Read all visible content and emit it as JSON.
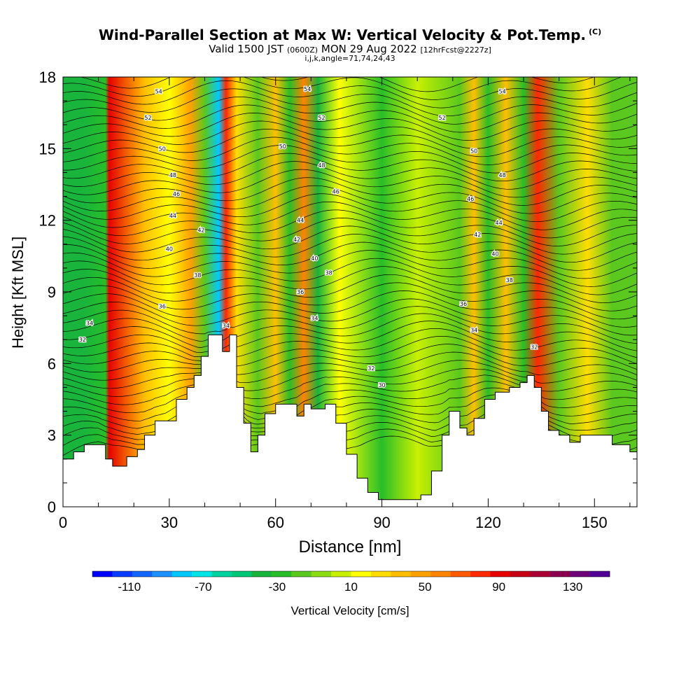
{
  "chart_data": {
    "type": "heatmap",
    "title": "Wind-Parallel Section at Max W: Vertical Velocity & Pot.Temp.",
    "title_mark": "(C)",
    "subtitle_main": "Valid 1500 JST",
    "subtitle_utc": "(0600Z)",
    "subtitle_date": "MON 29 Aug 2022",
    "subtitle_fcst": "[12hrFcst@2227z]",
    "params": "i,j,k,angle=71,74,24,43",
    "xlabel": "Distance [nm]",
    "ylabel": "Height [Kft MSL]",
    "xlim": [
      0,
      162
    ],
    "ylim": [
      0,
      18
    ],
    "x_ticks": [
      "0",
      "30",
      "60",
      "90",
      "120",
      "150"
    ],
    "y_ticks": [
      "0",
      "3",
      "6",
      "9",
      "12",
      "15",
      "18"
    ],
    "colorbar": {
      "label": "Vertical Velocity [cm/s]",
      "tick_labels": [
        "-110",
        "-70",
        "-30",
        "10",
        "50",
        "90",
        "130"
      ],
      "colors": [
        "#0000ff",
        "#0a3cff",
        "#1466ff",
        "#1e90ff",
        "#00c8ff",
        "#00e6e6",
        "#00d2a0",
        "#00c878",
        "#19b43c",
        "#28be28",
        "#5ac81e",
        "#8cdc14",
        "#c8f000",
        "#ffff00",
        "#ffdc00",
        "#ffbe00",
        "#ffa000",
        "#ff8200",
        "#ff5a00",
        "#ff2800",
        "#e60000",
        "#c80014",
        "#aa0032",
        "#8c0050",
        "#6e0078",
        "#500096"
      ]
    },
    "w_centers": [
      {
        "x": 12,
        "w": -25
      },
      {
        "x": 6,
        "w": -40
      },
      {
        "x": 13,
        "w": 95
      },
      {
        "x": 23,
        "w": 40
      },
      {
        "x": 30,
        "w": 20
      },
      {
        "x": 36,
        "w": 50
      },
      {
        "x": 40,
        "w": -20
      },
      {
        "x": 44,
        "w": -80
      },
      {
        "x": 46,
        "w": 80
      },
      {
        "x": 49,
        "w": 30
      },
      {
        "x": 55,
        "w": -20
      },
      {
        "x": 60,
        "w": 40
      },
      {
        "x": 64,
        "w": -30
      },
      {
        "x": 68,
        "w": 60
      },
      {
        "x": 72,
        "w": -40
      },
      {
        "x": 78,
        "w": 10
      },
      {
        "x": 90,
        "w": -30
      },
      {
        "x": 100,
        "w": 5
      },
      {
        "x": 112,
        "w": -15
      },
      {
        "x": 116,
        "w": 40
      },
      {
        "x": 120,
        "w": -25
      },
      {
        "x": 125,
        "w": 35
      },
      {
        "x": 130,
        "w": -30
      },
      {
        "x": 134,
        "w": 80
      },
      {
        "x": 140,
        "w": -20
      },
      {
        "x": 148,
        "w": 30
      },
      {
        "x": 155,
        "w": -15
      }
    ],
    "terrain": [
      {
        "x": 0,
        "h": 2.0
      },
      {
        "x": 3,
        "h": 2.3
      },
      {
        "x": 6,
        "h": 2.6
      },
      {
        "x": 10,
        "h": 2.6
      },
      {
        "x": 12,
        "h": 2.0
      },
      {
        "x": 14,
        "h": 1.7
      },
      {
        "x": 18,
        "h": 2.1
      },
      {
        "x": 21,
        "h": 2.4
      },
      {
        "x": 23,
        "h": 3.0
      },
      {
        "x": 26,
        "h": 3.6
      },
      {
        "x": 29,
        "h": 3.6
      },
      {
        "x": 32,
        "h": 4.5
      },
      {
        "x": 35,
        "h": 5.0
      },
      {
        "x": 37,
        "h": 5.5
      },
      {
        "x": 39,
        "h": 6.3
      },
      {
        "x": 41,
        "h": 7.2
      },
      {
        "x": 43,
        "h": 7.2
      },
      {
        "x": 45,
        "h": 6.5
      },
      {
        "x": 47,
        "h": 7.2
      },
      {
        "x": 49,
        "h": 5.0
      },
      {
        "x": 51,
        "h": 3.5
      },
      {
        "x": 53,
        "h": 2.3
      },
      {
        "x": 55,
        "h": 3.0
      },
      {
        "x": 57,
        "h": 3.9
      },
      {
        "x": 60,
        "h": 4.3
      },
      {
        "x": 63,
        "h": 4.3
      },
      {
        "x": 66,
        "h": 3.8
      },
      {
        "x": 68,
        "h": 4.3
      },
      {
        "x": 70,
        "h": 4.1
      },
      {
        "x": 74,
        "h": 4.3
      },
      {
        "x": 77,
        "h": 3.5
      },
      {
        "x": 80,
        "h": 2.2
      },
      {
        "x": 83,
        "h": 1.2
      },
      {
        "x": 86,
        "h": 0.6
      },
      {
        "x": 89,
        "h": 0.3
      },
      {
        "x": 94,
        "h": 0.3
      },
      {
        "x": 98,
        "h": 0.3
      },
      {
        "x": 101,
        "h": 0.5
      },
      {
        "x": 104,
        "h": 1.5
      },
      {
        "x": 107,
        "h": 3.0
      },
      {
        "x": 109,
        "h": 4.0
      },
      {
        "x": 112,
        "h": 3.3
      },
      {
        "x": 114,
        "h": 3.0
      },
      {
        "x": 116,
        "h": 3.7
      },
      {
        "x": 119,
        "h": 4.5
      },
      {
        "x": 122,
        "h": 4.8
      },
      {
        "x": 126,
        "h": 5.0
      },
      {
        "x": 129,
        "h": 5.2
      },
      {
        "x": 131,
        "h": 5.5
      },
      {
        "x": 133,
        "h": 5.0
      },
      {
        "x": 135,
        "h": 4.0
      },
      {
        "x": 137,
        "h": 3.2
      },
      {
        "x": 140,
        "h": 3.0
      },
      {
        "x": 143,
        "h": 2.7
      },
      {
        "x": 146,
        "h": 3.0
      },
      {
        "x": 149,
        "h": 3.0
      },
      {
        "x": 152,
        "h": 3.0
      },
      {
        "x": 155,
        "h": 2.6
      },
      {
        "x": 158,
        "h": 2.6
      },
      {
        "x": 160,
        "h": 2.3
      },
      {
        "x": 162,
        "h": 2.5
      }
    ],
    "isentrope_labels": [
      {
        "text": "54",
        "x": 27,
        "y": 17.4
      },
      {
        "text": "52",
        "x": 24,
        "y": 16.3
      },
      {
        "text": "50",
        "x": 28,
        "y": 15.0
      },
      {
        "text": "48",
        "x": 31,
        "y": 13.9
      },
      {
        "text": "46",
        "x": 32,
        "y": 13.1
      },
      {
        "text": "44",
        "x": 31,
        "y": 12.2
      },
      {
        "text": "42",
        "x": 39,
        "y": 11.6
      },
      {
        "text": "40",
        "x": 30,
        "y": 10.8
      },
      {
        "text": "38",
        "x": 38,
        "y": 9.7
      },
      {
        "text": "36",
        "x": 28,
        "y": 8.4
      },
      {
        "text": "34",
        "x": 7.5,
        "y": 7.7
      },
      {
        "text": "34",
        "x": 46,
        "y": 7.6
      },
      {
        "text": "32",
        "x": 5.5,
        "y": 7.0
      },
      {
        "text": "54",
        "x": 69,
        "y": 17.5
      },
      {
        "text": "52",
        "x": 73,
        "y": 16.3
      },
      {
        "text": "50",
        "x": 62,
        "y": 15.1
      },
      {
        "text": "48",
        "x": 73,
        "y": 14.3
      },
      {
        "text": "46",
        "x": 77,
        "y": 13.2
      },
      {
        "text": "44",
        "x": 67,
        "y": 12.0
      },
      {
        "text": "42",
        "x": 66,
        "y": 11.2
      },
      {
        "text": "40",
        "x": 71,
        "y": 10.4
      },
      {
        "text": "38",
        "x": 75,
        "y": 9.8
      },
      {
        "text": "36",
        "x": 67,
        "y": 9.0
      },
      {
        "text": "34",
        "x": 71,
        "y": 7.9
      },
      {
        "text": "32",
        "x": 87,
        "y": 5.8
      },
      {
        "text": "30",
        "x": 90,
        "y": 5.1
      },
      {
        "text": "54",
        "x": 124,
        "y": 17.4
      },
      {
        "text": "52",
        "x": 107,
        "y": 16.3
      },
      {
        "text": "50",
        "x": 116,
        "y": 14.9
      },
      {
        "text": "48",
        "x": 124,
        "y": 13.9
      },
      {
        "text": "46",
        "x": 115,
        "y": 12.9
      },
      {
        "text": "44",
        "x": 123,
        "y": 11.9
      },
      {
        "text": "42",
        "x": 117,
        "y": 11.4
      },
      {
        "text": "40",
        "x": 122,
        "y": 10.6
      },
      {
        "text": "38",
        "x": 126,
        "y": 9.5
      },
      {
        "text": "36",
        "x": 113,
        "y": 8.5
      },
      {
        "text": "34",
        "x": 116,
        "y": 7.4
      },
      {
        "text": "32",
        "x": 133,
        "y": 6.7
      }
    ]
  }
}
